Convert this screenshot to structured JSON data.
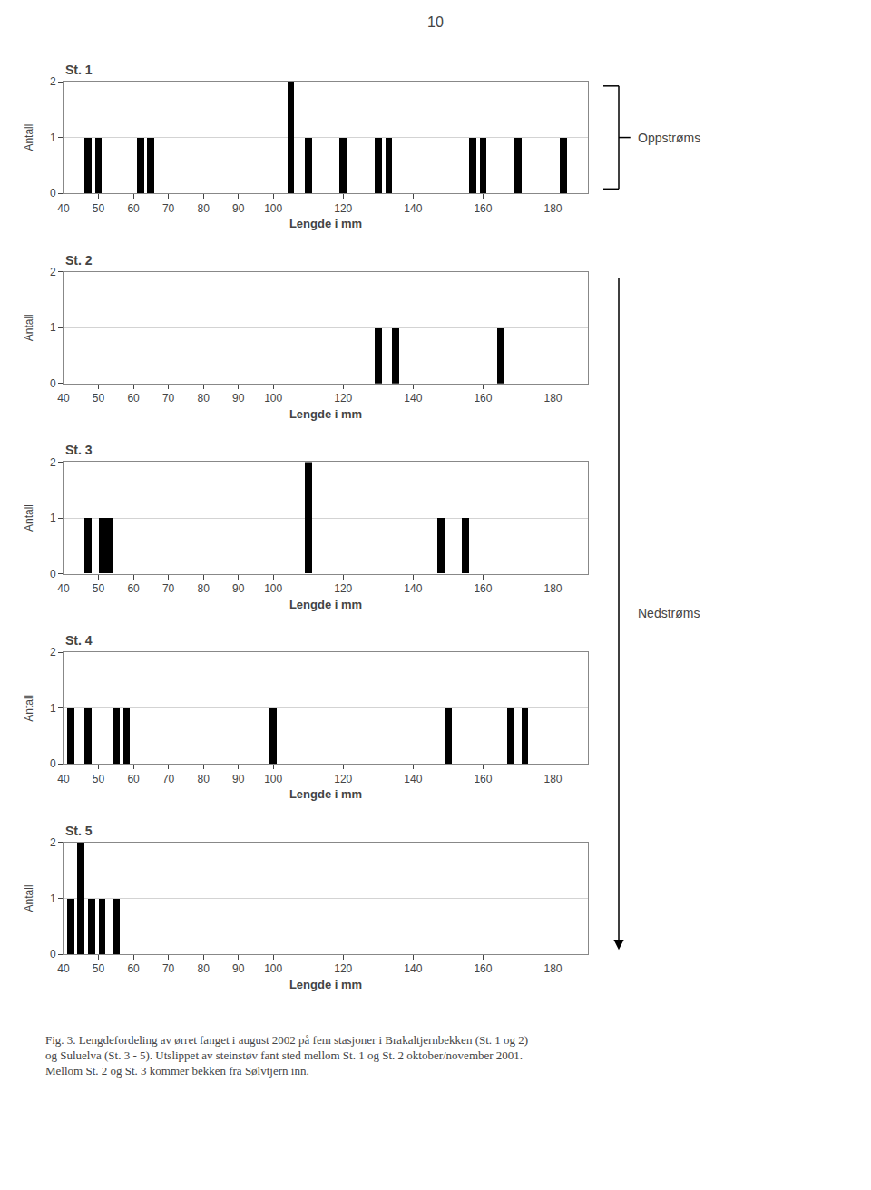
{
  "chart_data": [
    {
      "type": "bar",
      "title": "St. 1",
      "x": [
        47,
        50,
        62,
        65,
        105,
        110,
        120,
        130,
        133,
        157,
        160,
        170,
        183
      ],
      "values": [
        1,
        1,
        1,
        1,
        2,
        1,
        1,
        1,
        1,
        1,
        1,
        1,
        1
      ],
      "color": "black",
      "xlim": [
        40,
        190
      ],
      "ylim": [
        0,
        2
      ],
      "xticks": [
        40,
        50,
        60,
        70,
        80,
        90,
        100,
        120,
        140,
        160,
        180
      ],
      "yticks": [
        0,
        1,
        2
      ],
      "xlabel": "Lengde i mm",
      "ylabel": "Antall",
      "grid": "y"
    },
    {
      "type": "bar",
      "title": "St. 2",
      "x": [
        130,
        135,
        165
      ],
      "values": [
        1,
        1,
        1
      ],
      "color": "black",
      "xlim": [
        40,
        190
      ],
      "ylim": [
        0,
        2
      ],
      "xticks": [
        40,
        50,
        60,
        70,
        80,
        90,
        100,
        120,
        140,
        160,
        180
      ],
      "yticks": [
        0,
        1,
        2
      ],
      "xlabel": "Lengde i mm",
      "ylabel": "Antall",
      "grid": "y"
    },
    {
      "type": "bar",
      "title": "St. 3",
      "x": [
        47,
        51,
        53,
        110,
        148,
        155
      ],
      "values": [
        1,
        1,
        1,
        2,
        1,
        1
      ],
      "color": "black",
      "xlim": [
        40,
        190
      ],
      "ylim": [
        0,
        2
      ],
      "xticks": [
        40,
        50,
        60,
        70,
        80,
        90,
        100,
        120,
        140,
        160,
        180
      ],
      "yticks": [
        0,
        1,
        2
      ],
      "xlabel": "Lengde i mm",
      "ylabel": "Antall",
      "grid": "y"
    },
    {
      "type": "bar",
      "title": "St. 4",
      "x": [
        42,
        47,
        55,
        58,
        100,
        150,
        168,
        172
      ],
      "values": [
        1,
        1,
        1,
        1,
        1,
        1,
        1,
        1
      ],
      "color": "black",
      "xlim": [
        40,
        190
      ],
      "ylim": [
        0,
        2
      ],
      "xticks": [
        40,
        50,
        60,
        70,
        80,
        90,
        100,
        120,
        140,
        160,
        180
      ],
      "yticks": [
        0,
        1,
        2
      ],
      "xlabel": "Lengde i mm",
      "ylabel": "Antall",
      "grid": "y"
    },
    {
      "type": "bar",
      "title": "St. 5",
      "x": [
        42,
        45,
        48,
        51,
        55
      ],
      "values": [
        1,
        2,
        1,
        1,
        1
      ],
      "color": "black",
      "xlim": [
        40,
        190
      ],
      "ylim": [
        0,
        2
      ],
      "xticks": [
        40,
        50,
        60,
        70,
        80,
        90,
        100,
        120,
        140,
        160,
        180
      ],
      "yticks": [
        0,
        1,
        2
      ],
      "xlabel": "Lengde i mm",
      "ylabel": "Antall",
      "grid": "y"
    }
  ],
  "annotations": [
    "10",
    "Oppstrøms",
    "Nedstrøms",
    "Fig. 3. Lengdefordeling av ørret fanget i august 2002 på fem stasjoner i Brakaltjernbekken (St. 1 og 2)\nog Suluelva (St. 3 - 5). Utslippet av steinstøv fant sted mellom St. 1 og St. 2 oktober/november 2001.\nMellom St. 2 og St. 3 kommer bekken fra Sølvtjern inn."
  ]
}
